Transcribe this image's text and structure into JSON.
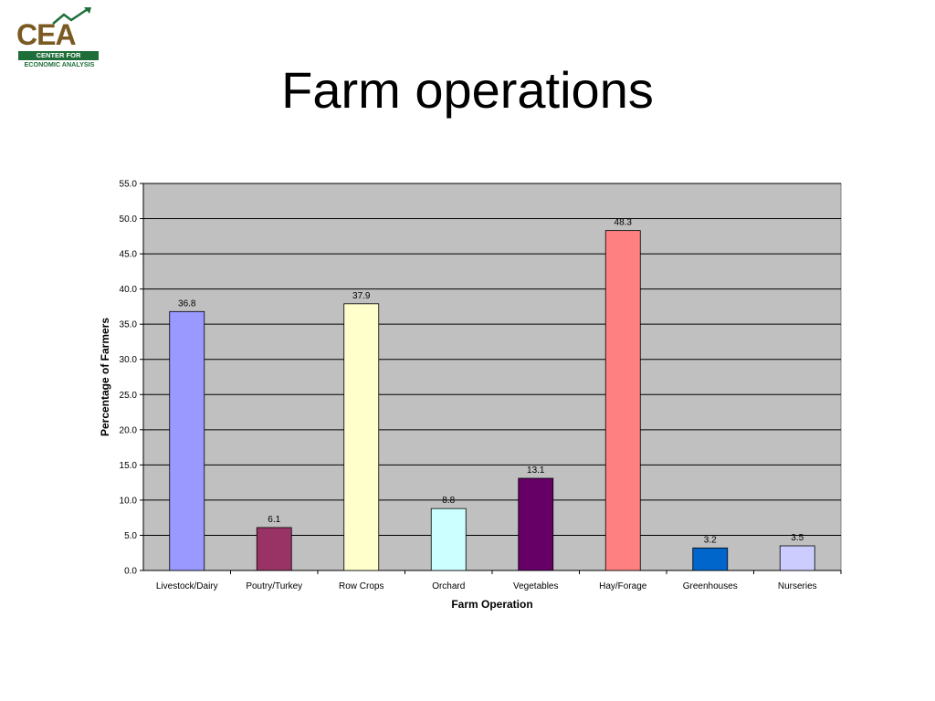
{
  "slide": {
    "title": "Farm operations"
  },
  "logo": {
    "letters": "CEA",
    "band_text": "CENTER FOR",
    "sub_text": "ECONOMIC ANALYSIS",
    "brown": "#7a5a22",
    "green": "#1f6e3a"
  },
  "chart_data": {
    "type": "bar",
    "title": "",
    "xlabel": "Farm Operation",
    "ylabel": "Percentage of Farmers",
    "ylim": [
      0,
      55
    ],
    "ytick_step": 5,
    "ytick_labels": [
      "0.0",
      "5.0",
      "10.0",
      "15.0",
      "20.0",
      "25.0",
      "30.0",
      "35.0",
      "40.0",
      "45.0",
      "50.0",
      "55.0"
    ],
    "grid": true,
    "plot_background": "#c0c0c0",
    "categories": [
      "Livestock/Dairy",
      "Poutry/Turkey",
      "Row Crops",
      "Orchard",
      "Vegetables",
      "Hay/Forage",
      "Greenhouses",
      "Nurseries"
    ],
    "values": [
      36.8,
      6.1,
      37.9,
      8.8,
      13.1,
      48.3,
      3.2,
      3.5
    ],
    "value_labels": [
      "36.8",
      "6.1",
      "37.9",
      "8.8",
      "13.1",
      "48.3",
      "3.2",
      "3.5"
    ],
    "colors": [
      "#9999ff",
      "#993366",
      "#ffffcc",
      "#ccffff",
      "#660066",
      "#ff8080",
      "#0066cc",
      "#ccccff"
    ]
  }
}
